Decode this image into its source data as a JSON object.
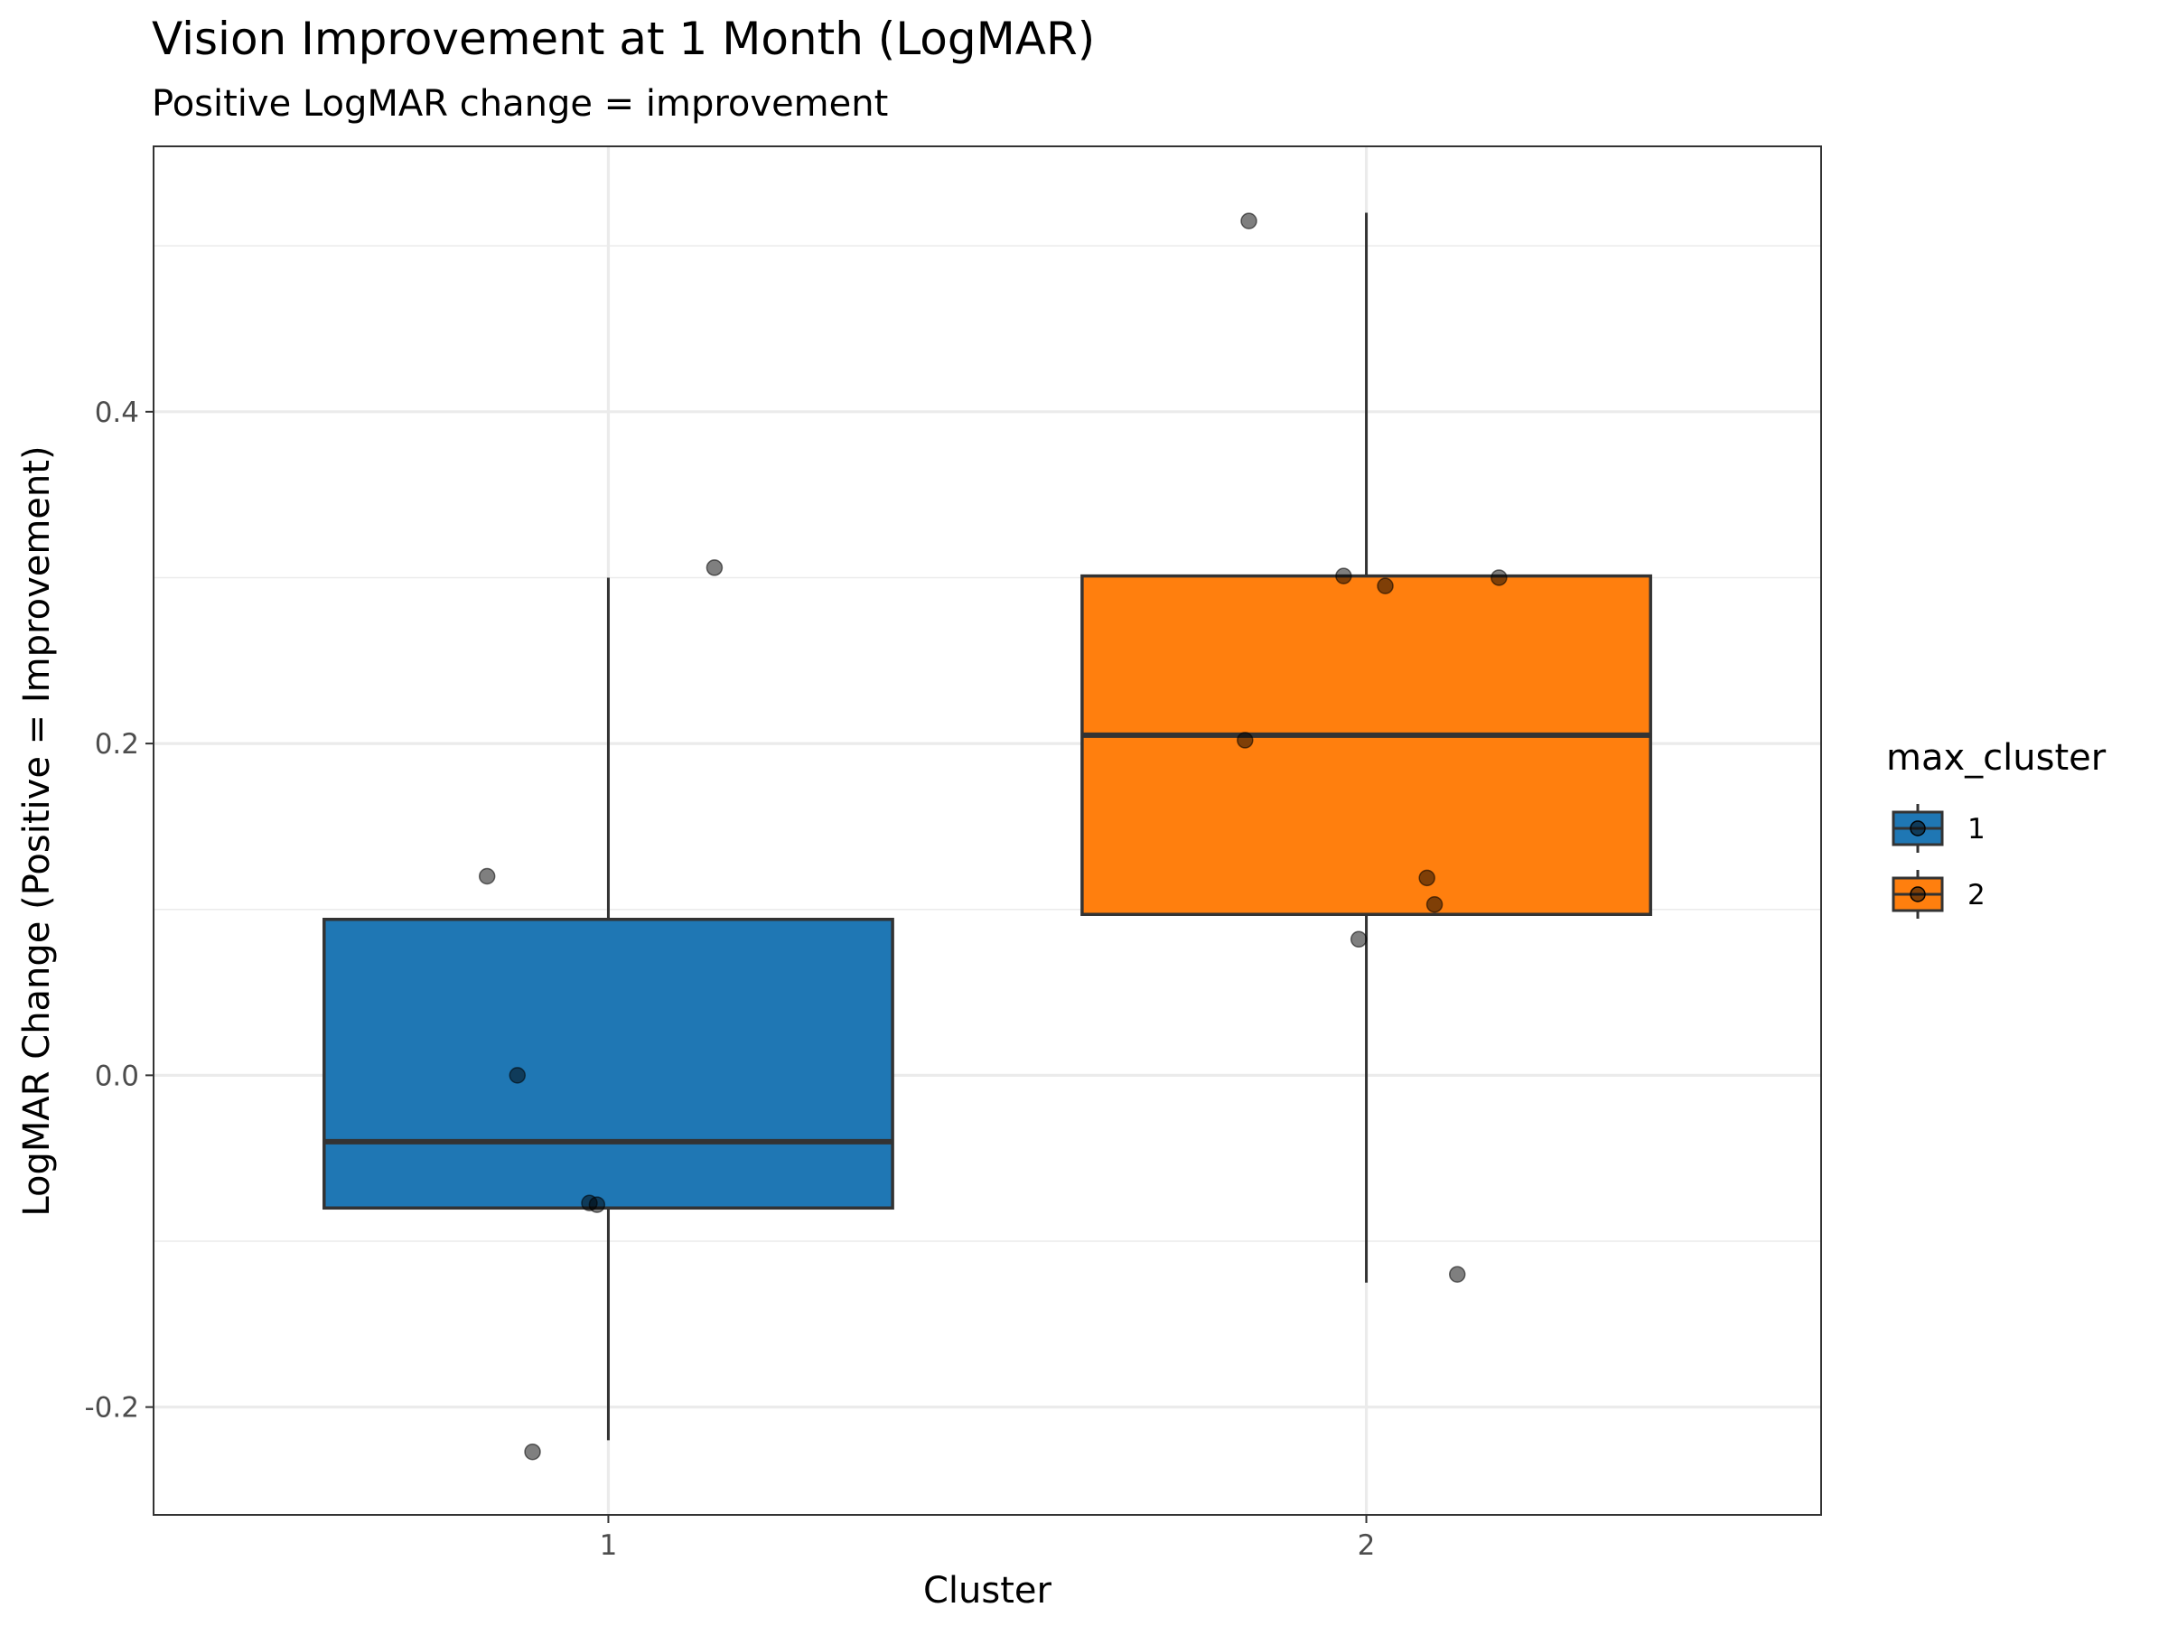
{
  "chart_data": {
    "type": "boxplot",
    "title": "Vision Improvement at 1 Month (LogMAR)",
    "subtitle": "Positive LogMAR change = improvement",
    "xlabel": "Cluster",
    "ylabel": "LogMAR Change (Positive = Improvement)",
    "categories": [
      "1",
      "2"
    ],
    "ylim": [
      -0.265,
      0.56
    ],
    "yticks": [
      -0.2,
      0.0,
      0.2,
      0.4
    ],
    "ytick_labels": [
      "-0.2",
      "0.0",
      "0.2",
      "0.4"
    ],
    "grid": true,
    "legend": {
      "title": "max_cluster",
      "position": "right",
      "entries": [
        "1",
        "2"
      ]
    },
    "series": [
      {
        "category": "1",
        "color": "#1f77b4",
        "lower_whisker": -0.22,
        "q1": -0.08,
        "median": -0.04,
        "q3": 0.094,
        "upper_whisker": 0.3,
        "points": [
          {
            "jitter": -0.16,
            "y": 0.12
          },
          {
            "jitter": -0.12,
            "y": 0.0
          },
          {
            "jitter": 0.14,
            "y": 0.306
          },
          {
            "jitter": -0.025,
            "y": -0.077
          },
          {
            "jitter": -0.015,
            "y": -0.078
          },
          {
            "jitter": -0.1,
            "y": -0.227
          }
        ]
      },
      {
        "category": "2",
        "color": "#ff7f0e",
        "lower_whisker": -0.125,
        "q1": 0.097,
        "median": 0.205,
        "q3": 0.301,
        "upper_whisker": 0.52,
        "points": [
          {
            "jitter": -0.155,
            "y": 0.515
          },
          {
            "jitter": -0.03,
            "y": 0.301
          },
          {
            "jitter": 0.025,
            "y": 0.295
          },
          {
            "jitter": 0.175,
            "y": 0.3
          },
          {
            "jitter": -0.16,
            "y": 0.202
          },
          {
            "jitter": 0.08,
            "y": 0.119
          },
          {
            "jitter": 0.09,
            "y": 0.103
          },
          {
            "jitter": -0.01,
            "y": 0.082
          },
          {
            "jitter": 0.12,
            "y": -0.12
          }
        ]
      }
    ]
  }
}
